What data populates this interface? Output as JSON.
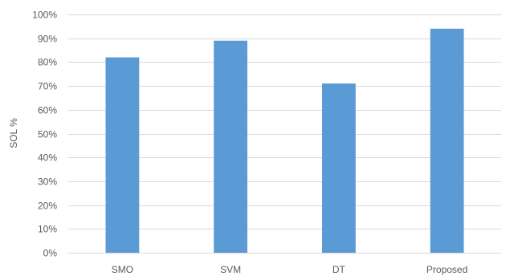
{
  "chart_data": {
    "type": "bar",
    "title": "",
    "xlabel": "",
    "ylabel": "SOL %",
    "categories": [
      "SMO",
      "SVM",
      "DT",
      "Proposed"
    ],
    "values": [
      82,
      89,
      71,
      94
    ],
    "ylim": [
      0,
      100
    ],
    "yticks": [
      0,
      10,
      20,
      30,
      40,
      50,
      60,
      70,
      80,
      90,
      100
    ],
    "ytick_labels": [
      "0%",
      "10%",
      "20%",
      "30%",
      "40%",
      "50%",
      "60%",
      "70%",
      "80%",
      "90%",
      "100%"
    ],
    "grid": true,
    "legend": "none",
    "bar_color": "#5B9BD5",
    "grid_color": "#D9D9D9",
    "text_color": "#595959"
  }
}
